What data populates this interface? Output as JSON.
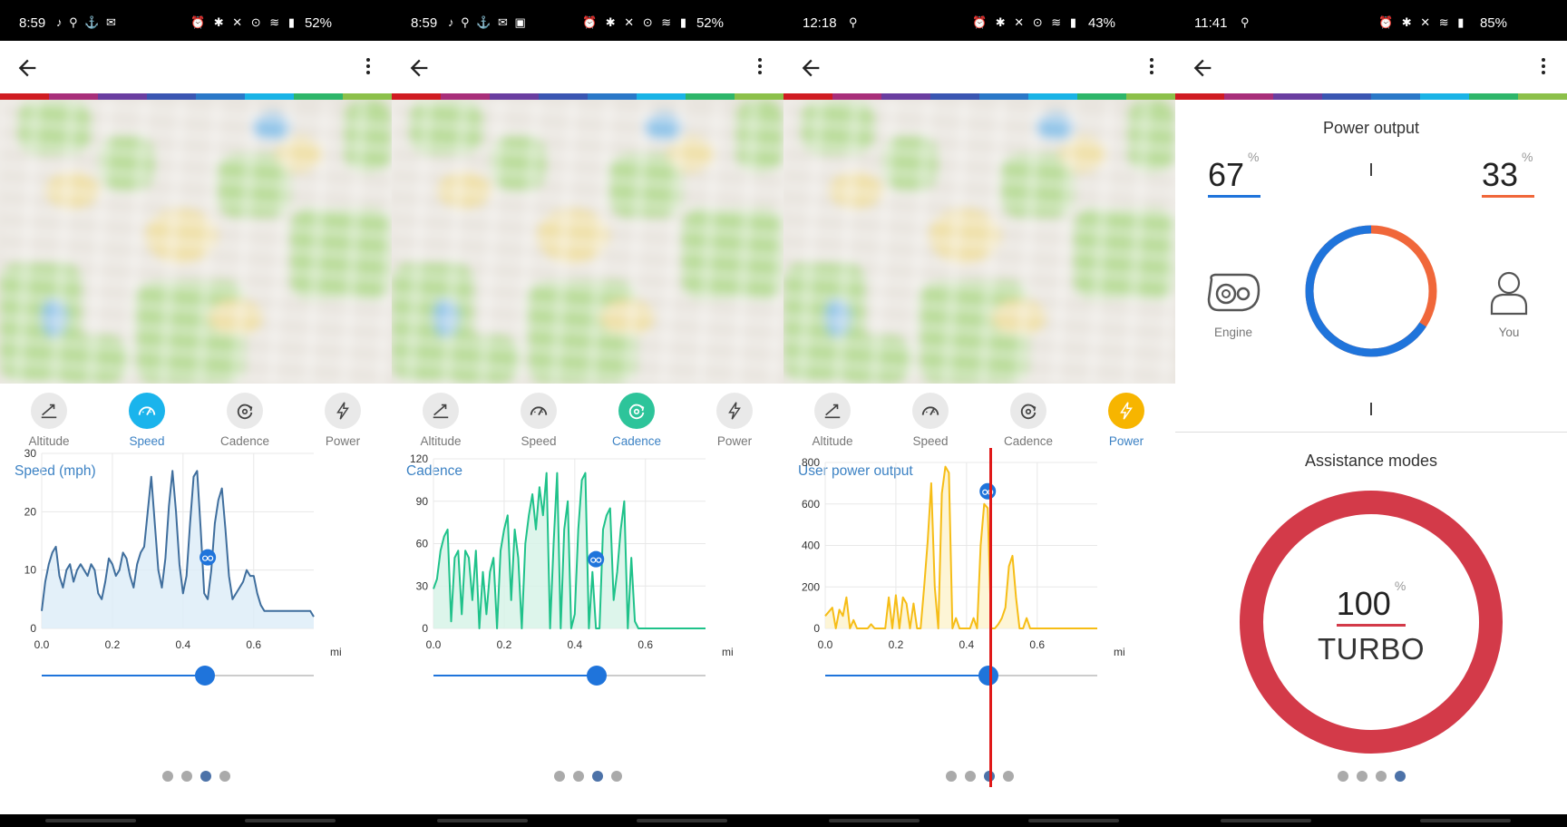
{
  "status_bars": [
    {
      "time": "8:59",
      "icons_left": "♪ ⚲ ⚓ ✉",
      "icons_right": "⏰ ✱ ✕ ⊙ ≋ ▮",
      "battery": "52%"
    },
    {
      "time": "8:59",
      "icons_left": "♪ ⚲ ⚓ ✉ ▣",
      "icons_right": "⏰ ✱ ✕ ⊙ ≋ ▮",
      "battery": "52%"
    },
    {
      "time": "12:18",
      "icons_left": "⚲",
      "icons_right": "⏰ ✱ ✕ ⊙ ≋ ▮",
      "battery": "43%"
    },
    {
      "time": "11:41",
      "icons_left": "⚲",
      "icons_right": "⏰ ✱ ✕ ≋ ▮",
      "battery": "85%"
    }
  ],
  "tabs": {
    "altitude": "Altitude",
    "speed": "Speed",
    "cadence": "Cadence",
    "power": "Power"
  },
  "colors": {
    "speed_active": "#1ab4ec",
    "cadence_active": "#2dc49a",
    "power_active": "#f7b500",
    "speed_line": "#3f6e9d",
    "cadence_line": "#1fc28a",
    "power_line": "#f6bd16",
    "engine_ring": "#1f74db",
    "you_ring": "#f0673a",
    "turbo_ring": "#d33a49",
    "stripe": [
      "#d01c22",
      "#a82f7a",
      "#6a3ea0",
      "#3a56b2",
      "#2a78c8",
      "#1ab3e6",
      "#2eb66a",
      "#8cc04a"
    ]
  },
  "panels": [
    {
      "active_tab": "speed",
      "chart_title": "Speed (mph)",
      "chart_data": {
        "type": "area",
        "ylim": [
          0,
          30
        ],
        "yticks": [
          "0",
          "10",
          "20",
          "30"
        ],
        "xlim": [
          0.0,
          0.77
        ],
        "xticks": [
          "0.0",
          "0.2",
          "0.4",
          "0.6"
        ],
        "xunit": "mi",
        "x": [
          0.0,
          0.01,
          0.02,
          0.03,
          0.04,
          0.05,
          0.06,
          0.07,
          0.08,
          0.09,
          0.1,
          0.11,
          0.12,
          0.13,
          0.14,
          0.15,
          0.16,
          0.17,
          0.18,
          0.19,
          0.2,
          0.21,
          0.22,
          0.23,
          0.24,
          0.25,
          0.26,
          0.27,
          0.28,
          0.29,
          0.3,
          0.31,
          0.32,
          0.33,
          0.34,
          0.35,
          0.36,
          0.37,
          0.38,
          0.39,
          0.4,
          0.41,
          0.42,
          0.43,
          0.44,
          0.45,
          0.46,
          0.47,
          0.48,
          0.49,
          0.5,
          0.51,
          0.52,
          0.53,
          0.54,
          0.55,
          0.56,
          0.57,
          0.58,
          0.59,
          0.6,
          0.61,
          0.62,
          0.63,
          0.64,
          0.65,
          0.66,
          0.67,
          0.68,
          0.69,
          0.7,
          0.71,
          0.72,
          0.73,
          0.74,
          0.75,
          0.76,
          0.77
        ],
        "y": [
          3,
          8,
          11,
          13,
          14,
          9,
          7,
          10,
          11,
          8,
          10,
          11,
          10,
          9,
          11,
          10,
          6,
          5,
          8,
          12,
          11,
          9,
          10,
          13,
          12,
          9,
          7,
          11,
          13,
          14,
          20,
          26,
          18,
          10,
          7,
          12,
          21,
          27,
          20,
          11,
          6,
          9,
          18,
          26,
          27,
          17,
          6,
          5,
          10,
          18,
          22,
          24,
          17,
          9,
          5,
          6,
          7,
          8,
          10,
          9,
          9,
          6,
          4,
          3,
          3,
          3,
          3,
          3,
          3,
          3,
          3,
          3,
          3,
          3,
          3,
          3,
          3,
          2
        ],
        "marker_x": 0.47
      },
      "slider_value": 0.6,
      "page_active": 2
    },
    {
      "active_tab": "cadence",
      "chart_title": "Cadence",
      "chart_data": {
        "type": "area",
        "ylim": [
          0,
          120
        ],
        "yticks": [
          "0",
          "30",
          "60",
          "90",
          "120"
        ],
        "xlim": [
          0.0,
          0.77
        ],
        "xticks": [
          "0.0",
          "0.2",
          "0.4",
          "0.6"
        ],
        "xunit": "mi",
        "x": [
          0.0,
          0.01,
          0.02,
          0.03,
          0.04,
          0.05,
          0.06,
          0.07,
          0.08,
          0.09,
          0.1,
          0.11,
          0.12,
          0.13,
          0.14,
          0.15,
          0.16,
          0.17,
          0.18,
          0.19,
          0.2,
          0.21,
          0.22,
          0.23,
          0.24,
          0.25,
          0.26,
          0.27,
          0.28,
          0.29,
          0.3,
          0.31,
          0.32,
          0.33,
          0.34,
          0.35,
          0.36,
          0.37,
          0.38,
          0.39,
          0.4,
          0.41,
          0.42,
          0.43,
          0.44,
          0.45,
          0.46,
          0.47,
          0.48,
          0.49,
          0.5,
          0.51,
          0.52,
          0.53,
          0.54,
          0.55,
          0.56,
          0.57,
          0.58,
          0.59,
          0.6,
          0.61,
          0.62,
          0.63,
          0.64,
          0.65,
          0.66,
          0.67,
          0.68,
          0.69,
          0.7,
          0.71,
          0.72,
          0.73,
          0.74,
          0.75,
          0.76,
          0.77
        ],
        "y": [
          28,
          35,
          55,
          65,
          70,
          5,
          50,
          55,
          10,
          55,
          50,
          20,
          55,
          0,
          40,
          10,
          40,
          50,
          0,
          55,
          70,
          80,
          20,
          70,
          50,
          0,
          60,
          80,
          95,
          70,
          100,
          80,
          110,
          0,
          60,
          110,
          0,
          70,
          90,
          0,
          10,
          70,
          105,
          110,
          0,
          40,
          0,
          0,
          70,
          80,
          85,
          20,
          40,
          70,
          90,
          0,
          50,
          5,
          0,
          0,
          0,
          0,
          0,
          0,
          0,
          0,
          0,
          0,
          0,
          0,
          0,
          0,
          0,
          0,
          0,
          0,
          0,
          0
        ],
        "marker_x": 0.46
      },
      "slider_value": 0.6,
      "page_active": 2
    },
    {
      "active_tab": "power",
      "chart_title": "User power output",
      "chart_data": {
        "type": "area",
        "ylim": [
          0,
          800
        ],
        "yticks": [
          "0",
          "200",
          "400",
          "600",
          "800"
        ],
        "xlim": [
          0.0,
          0.77
        ],
        "xticks": [
          "0.0",
          "0.2",
          "0.4",
          "0.6"
        ],
        "xunit": "mi",
        "x": [
          0.0,
          0.01,
          0.02,
          0.03,
          0.04,
          0.05,
          0.06,
          0.07,
          0.08,
          0.09,
          0.1,
          0.11,
          0.12,
          0.13,
          0.14,
          0.15,
          0.16,
          0.17,
          0.18,
          0.19,
          0.2,
          0.21,
          0.22,
          0.23,
          0.24,
          0.25,
          0.26,
          0.27,
          0.28,
          0.29,
          0.3,
          0.31,
          0.32,
          0.33,
          0.34,
          0.35,
          0.36,
          0.37,
          0.38,
          0.39,
          0.4,
          0.41,
          0.42,
          0.43,
          0.44,
          0.45,
          0.46,
          0.47,
          0.48,
          0.49,
          0.5,
          0.51,
          0.52,
          0.53,
          0.54,
          0.55,
          0.56,
          0.57,
          0.58,
          0.59,
          0.6,
          0.61,
          0.62,
          0.63,
          0.64,
          0.65,
          0.66,
          0.67,
          0.68,
          0.69,
          0.7,
          0.71,
          0.72,
          0.73,
          0.74,
          0.75,
          0.76,
          0.77
        ],
        "y": [
          60,
          80,
          100,
          0,
          90,
          60,
          150,
          0,
          40,
          0,
          0,
          0,
          0,
          20,
          0,
          0,
          0,
          0,
          150,
          0,
          160,
          0,
          150,
          120,
          0,
          120,
          0,
          0,
          200,
          420,
          700,
          200,
          0,
          650,
          780,
          750,
          0,
          50,
          0,
          0,
          0,
          0,
          50,
          0,
          400,
          600,
          580,
          0,
          0,
          20,
          50,
          100,
          300,
          350,
          150,
          0,
          0,
          50,
          0,
          0,
          0,
          0,
          0,
          0,
          0,
          0,
          0,
          0,
          0,
          0,
          0,
          0,
          0,
          0,
          0,
          0,
          0,
          0
        ],
        "marker_x": 0.46
      },
      "slider_value": 0.6,
      "page_active": 2
    }
  ],
  "summary": {
    "power_output_title": "Power output",
    "engine_pct": "67",
    "you_pct": "33",
    "pct_sign": "%",
    "engine_label": "Engine",
    "you_label": "You",
    "assistance_title": "Assistance modes",
    "turbo_pct": "100",
    "turbo_label": "TURBO",
    "engine_share": 0.67,
    "page_active": 3
  }
}
